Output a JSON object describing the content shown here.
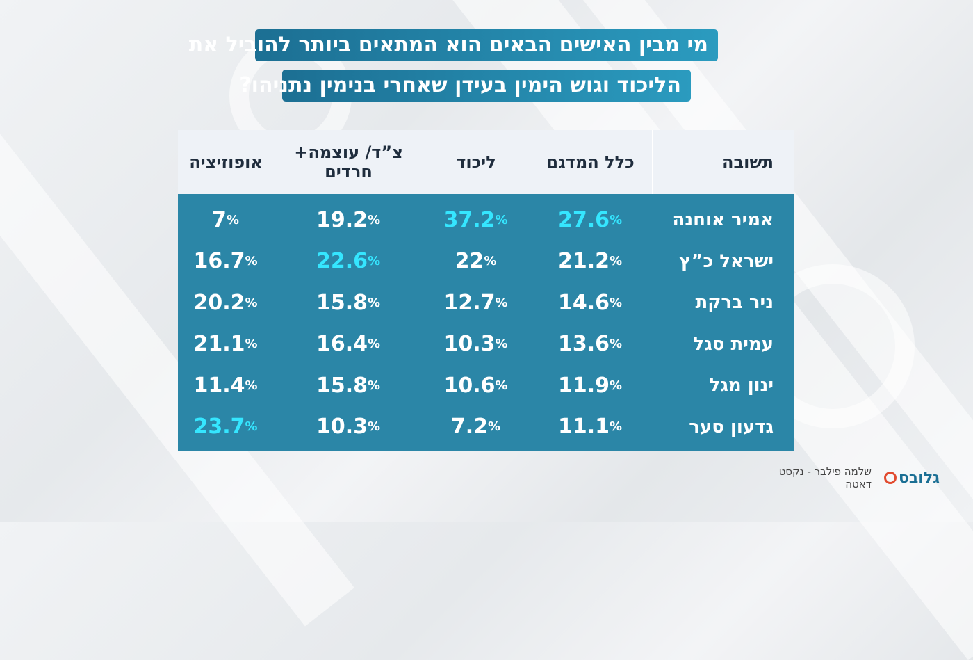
{
  "title_lines": [
    "מי מבין האישים הבאים הוא המתאים ביותר להוביל את",
    "הליכוד וגוש הימין בעידן שאחרי בנימין נתניהו?"
  ],
  "headers": {
    "answer": "תשובה",
    "all": "כלל המדגם",
    "likud": "ליכוד",
    "zad_line1": "צ”ד/ עוצמה+",
    "zad_line2": "חרדים",
    "opposition": "אופוזיציה"
  },
  "footer": {
    "logo": "גלובס",
    "source": "שלמה פילבר - נקסט דאטה"
  },
  "colors": {
    "header_bg": "#eef2f7",
    "body_bg": "#2b86a7",
    "highlight": "#35e6ff"
  },
  "chart_data": {
    "type": "table",
    "columns": [
      "תשובה",
      "כלל המדגם",
      "ליכוד",
      "צ”ד/ עוצמה+ חרדים",
      "אופוזיציה"
    ],
    "rows": [
      {
        "label": "אמיר אוחנה",
        "values": [
          "27.6",
          "37.2",
          "19.2",
          "7"
        ],
        "highlight": [
          true,
          true,
          false,
          false
        ]
      },
      {
        "label": "ישראל כ”ץ",
        "values": [
          "21.2",
          "22",
          "22.6",
          "16.7"
        ],
        "highlight": [
          false,
          false,
          true,
          false
        ]
      },
      {
        "label": "ניר ברקת",
        "values": [
          "14.6",
          "12.7",
          "15.8",
          "20.2"
        ],
        "highlight": [
          false,
          false,
          false,
          false
        ]
      },
      {
        "label": "עמית סגל",
        "values": [
          "13.6",
          "10.3",
          "16.4",
          "21.1"
        ],
        "highlight": [
          false,
          false,
          false,
          false
        ]
      },
      {
        "label": "ינון מגל",
        "values": [
          "11.9",
          "10.6",
          "15.8",
          "11.4"
        ],
        "highlight": [
          false,
          false,
          false,
          false
        ]
      },
      {
        "label": "גדעון סער",
        "values": [
          "11.1",
          "7.2",
          "10.3",
          "23.7"
        ],
        "highlight": [
          false,
          false,
          false,
          true
        ]
      }
    ],
    "unit": "%"
  }
}
